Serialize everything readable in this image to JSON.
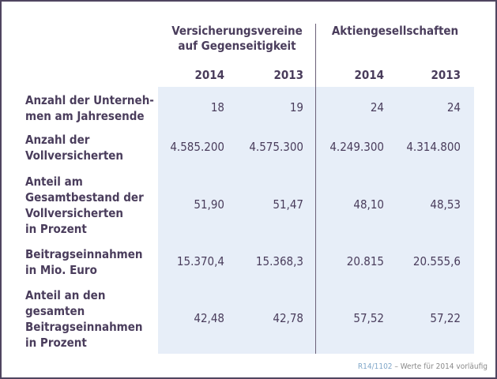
{
  "groups": [
    {
      "label": "Versicherungsvereine auf Gegenseitigkeit",
      "line1": "Versicherungsvereine",
      "line2": "auf Gegenseitigkeit"
    },
    {
      "label": "Aktiengesellschaften"
    }
  ],
  "years": [
    "2014",
    "2013",
    "2014",
    "2013"
  ],
  "rows": [
    {
      "label": "Anzahl der Unterneh-men am Jahresende",
      "lines": [
        "Anzahl der Unterneh-",
        "men am Jahresende"
      ],
      "values": [
        "18",
        "19",
        "24",
        "24"
      ]
    },
    {
      "label": "Anzahl der Vollversicherten",
      "lines": [
        "Anzahl der",
        "Vollversicherten"
      ],
      "values": [
        "4.585.200",
        "4.575.300",
        "4.249.300",
        "4.314.800"
      ]
    },
    {
      "label": "Anteil am Gesamtbestand der Vollversicherten in Prozent",
      "lines": [
        "Anteil am",
        "Gesamtbestand der",
        "Vollversicherten",
        "in Prozent"
      ],
      "values": [
        "51,90",
        "51,47",
        "48,10",
        "48,53"
      ]
    },
    {
      "label": "Beitragseinnahmen in Mio. Euro",
      "lines": [
        "Beitragseinnahmen",
        "in Mio. Euro"
      ],
      "values": [
        "15.370,4",
        "15.368,3",
        "20.815",
        "20.555,6"
      ]
    },
    {
      "label": "Anteil an den gesamten Beitragseinnahmen in Prozent",
      "lines": [
        "Anteil an den",
        "gesamten",
        "Beitragseinnahmen",
        "in Prozent"
      ],
      "values": [
        "42,48",
        "42,78",
        "57,52",
        "57,22"
      ]
    }
  ],
  "footer": {
    "code": "R14/1102",
    "note": " – Werte für 2014 vorläufig"
  },
  "colors": {
    "text": "#4a3d5c",
    "band": "#e7eef8",
    "footer_code": "#7fa6c8"
  }
}
